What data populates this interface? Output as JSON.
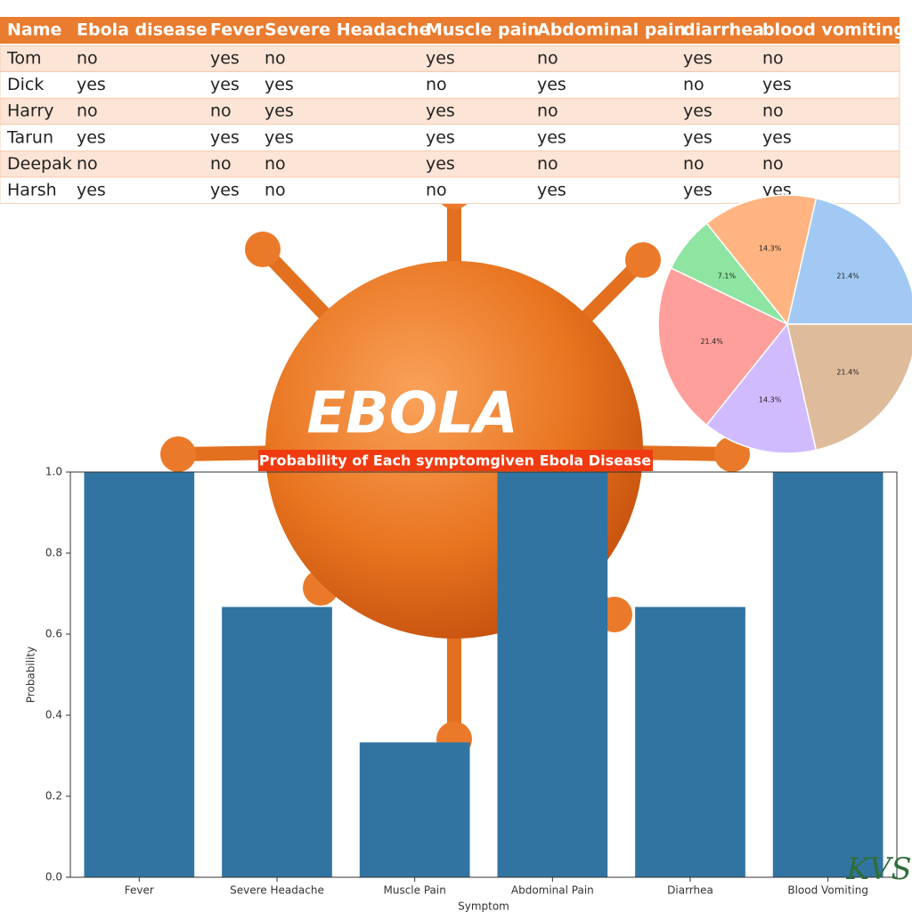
{
  "table": {
    "header": [
      "Name",
      "Ebola disease",
      "Fever",
      "Severe Headache",
      "Muscle pain",
      "Abdominal pain",
      "diarrhea",
      "blood vomiting"
    ],
    "rows": [
      [
        "Tom",
        "no",
        "yes",
        "no",
        "yes",
        "no",
        "yes",
        "no"
      ],
      [
        "Dick",
        "yes",
        "yes",
        "yes",
        "no",
        "yes",
        "no",
        "yes"
      ],
      [
        "Harry",
        "no",
        "no",
        "yes",
        "yes",
        "no",
        "yes",
        "no"
      ],
      [
        "Tarun",
        "yes",
        "yes",
        "yes",
        "yes",
        "yes",
        "yes",
        "yes"
      ],
      [
        "Deepak",
        "no",
        "no",
        "no",
        "yes",
        "no",
        "no",
        "no"
      ],
      [
        "Harsh",
        "yes",
        "yes",
        "no",
        "no",
        "yes",
        "yes",
        "yes"
      ]
    ]
  },
  "heading": "EBOLA",
  "logo": "KVS",
  "chart_data": [
    {
      "type": "pie",
      "values": [
        21.4,
        14.3,
        7.1,
        21.4,
        14.3,
        21.4
      ],
      "value_labels": [
        "21.4%",
        "14.3%",
        "7.1%",
        "21.4%",
        "14.3%",
        "21.4%"
      ],
      "colors": [
        "#a1c9f4",
        "#ffb482",
        "#8de5a1",
        "#ff9f9b",
        "#d0bbff",
        "#debb9b"
      ]
    },
    {
      "type": "bar",
      "title": "Probability of Each symptomgiven Ebola Disease",
      "x_label": "Symptom",
      "y_label": "Probability",
      "categories": [
        "Fever",
        "Severe Headache",
        "Muscle Pain",
        "Abdominal Pain",
        "Diarrhea",
        "Blood Vomiting"
      ],
      "values": [
        1.0,
        0.667,
        0.333,
        1.0,
        0.667,
        1.0
      ],
      "color": "#3274a1",
      "ylim": [
        0,
        1
      ],
      "yticks": [
        {
          "value": 0,
          "label": "0.0"
        },
        0.2,
        0.4,
        0.6,
        0.8,
        {
          "value": 1,
          "label": "1.0"
        }
      ]
    }
  ]
}
